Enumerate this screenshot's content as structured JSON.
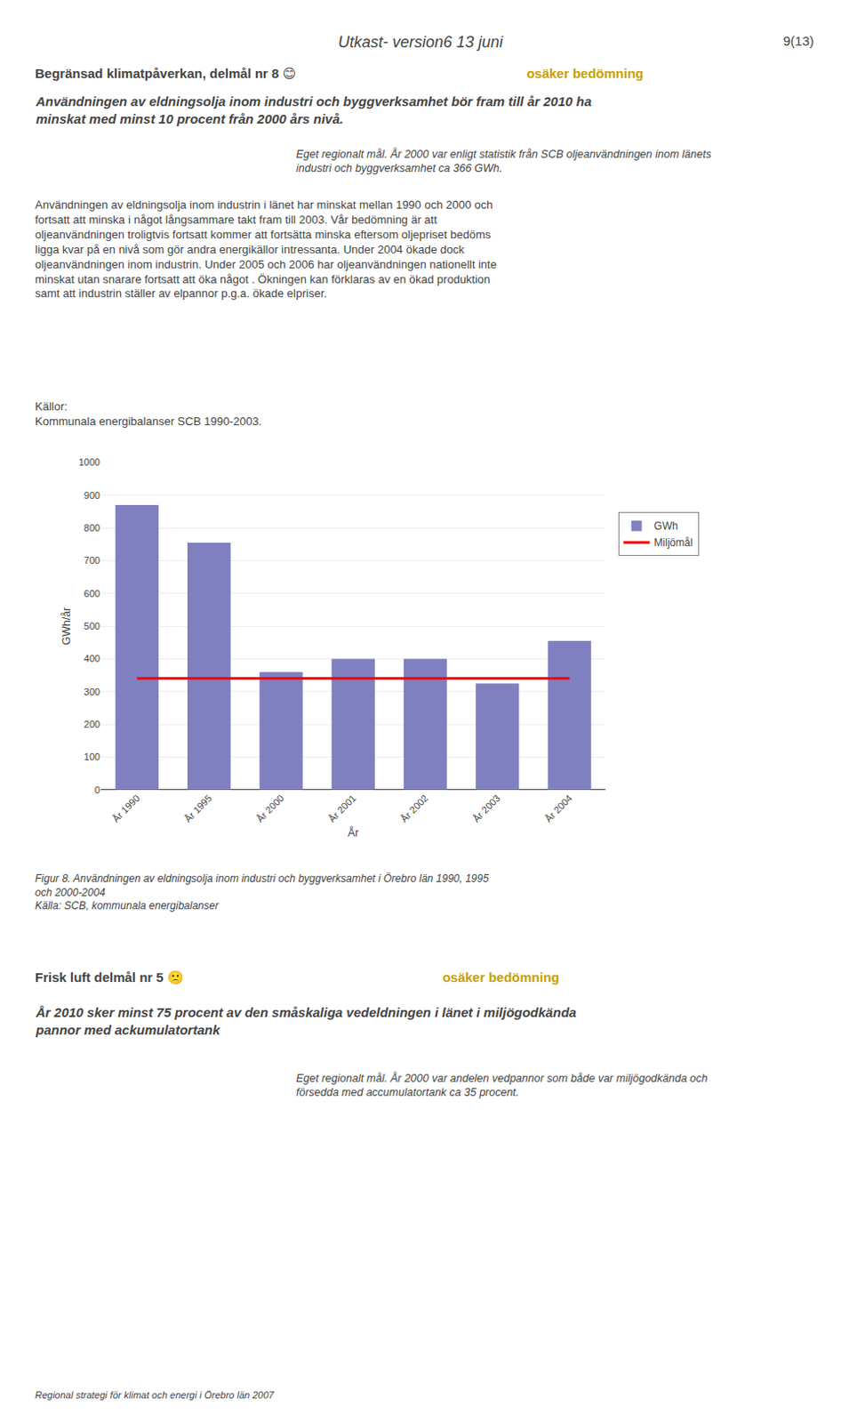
{
  "chart_data": {
    "type": "bar",
    "categories": [
      "År 1990",
      "År 1995",
      "År 2000",
      "År 2001",
      "År 2002",
      "År 2003",
      "År 2004"
    ],
    "series": [
      {
        "name": "GWh",
        "type": "bar",
        "color": "#8080c0",
        "values": [
          870,
          755,
          360,
          400,
          400,
          325,
          455
        ]
      },
      {
        "name": "Miljömål",
        "type": "line",
        "color": "#ff0000",
        "values": [
          340,
          340,
          340,
          340,
          340,
          340,
          340
        ]
      }
    ],
    "xlabel": "År",
    "ylabel": "GWh/år",
    "ylim": [
      0,
      1000
    ],
    "yticks": [
      0,
      100,
      200,
      300,
      400,
      500,
      600,
      700,
      800,
      900,
      1000
    ],
    "grid": true,
    "legend": "right",
    "annotations": [
      {
        "text": "Utkast- version6 13 juni"
      },
      {
        "text": "9(13)"
      },
      {
        "text": "Begränsad klimatpåverkan, delmål nr 8 😊"
      },
      {
        "text": " osäker bedömning",
        "color": "#c8a000"
      },
      {
        "text": "Användningen av eldningsolja inom industri och byggverksamhet bör fram till år 2010 ha\nminskat med minst 10 procent från 2000 års nivå."
      },
      {
        "text": "Eget regionalt mål. År 2000 var enligt statistik från SCB oljeanvändningen inom länets\nindustri och byggverksamhet ca 366 GWh."
      },
      {
        "text": "Användningen av eldningsolja inom industrin i länet har minskat mellan 1990 och 2000 och\nfortsatt att minska i något långsammare takt fram till 2003. Vår bedömning är att\noljeanvändningen troligtvis fortsatt kommer att fortsätta minska eftersom oljepriset bedöms\nligga kvar på en nivå som gör andra energikällor intressanta. Under 2004 ökade dock\noljeanvändningen inom industrin. Under 2005 och 2006 har oljeanvändningen nationellt inte\nminskat utan snarare fortsatt att öka något . Ökningen kan förklaras av en ökad produktion\nsamt att industrin ställer av elpannor p.g.a. ökade elpriser."
      },
      {
        "text": "Källor:\nKommunala energibalanser SCB 1990-2003."
      },
      {
        "text": "Figur 8. Användningen av eldningsolja inom industri och byggverksamhet i Örebro län 1990, 1995\noch 2000-2004\nKälla: SCB, kommunala energibalanser"
      },
      {
        "text": "Frisk luft delmål nr 5 🙁"
      },
      {
        "text": " osäker bedömning",
        "color": "#c8a000"
      },
      {
        "text": "År 2010 sker minst 75 procent av den småskaliga vedeldningen i länet i miljögodkända\npannor med ackumulatortank"
      },
      {
        "text": "Eget regionalt mål. År 2000 var andelen vedpannor som både var miljögodkända och\nförsedda med accumulatortank ca 35 procent."
      },
      {
        "text": "Regional strategi för klimat och energi i Örebro län 2007"
      }
    ]
  }
}
